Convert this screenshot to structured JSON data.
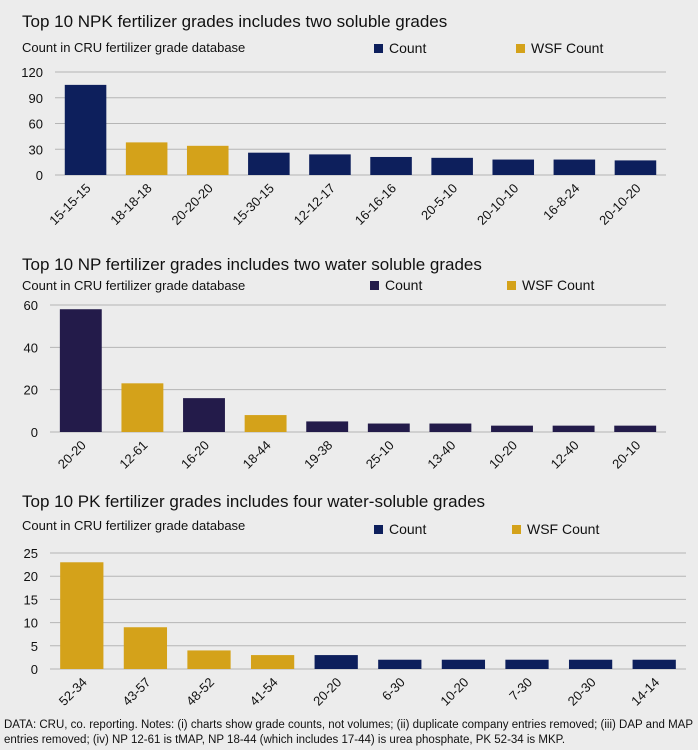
{
  "colors": {
    "count_npk": "#0d1f5c",
    "count_np": "#231b4a",
    "count_pk": "#0d1f5c",
    "wsf": "#d4a21a",
    "grid": "#b5b5b5"
  },
  "chart_data": [
    {
      "type": "bar",
      "title": "Top 10 NPK fertilizer grades includes two soluble grades",
      "ylabel": "Count in CRU fertilizer grade database",
      "legend": [
        "Count",
        "WSF Count"
      ],
      "legend_position": "top-right",
      "ylim": [
        0,
        120
      ],
      "yticks": [
        0,
        30,
        60,
        90,
        120
      ],
      "grid": true,
      "categories": [
        "15-15-15",
        "18-18-18",
        "20-20-20",
        "15-30-15",
        "12-12-17",
        "16-16-16",
        "20-5-10",
        "20-10-10",
        "16-8-24",
        "20-10-20"
      ],
      "values": [
        105,
        38,
        34,
        26,
        24,
        21,
        20,
        18,
        18,
        17
      ],
      "series_of_bar": [
        "Count",
        "WSF Count",
        "WSF Count",
        "Count",
        "Count",
        "Count",
        "Count",
        "Count",
        "Count",
        "Count"
      ]
    },
    {
      "type": "bar",
      "title": "Top 10 NP fertilizer grades includes two water soluble grades",
      "ylabel": "Count in CRU fertilizer grade database",
      "legend": [
        "Count",
        "WSF Count"
      ],
      "legend_position": "top-right",
      "ylim": [
        0,
        60
      ],
      "yticks": [
        0,
        20,
        40,
        60
      ],
      "grid": true,
      "categories": [
        "20-20",
        "12-61",
        "16-20",
        "18-44",
        "19-38",
        "25-10",
        "13-40",
        "10-20",
        "12-40",
        "20-10"
      ],
      "values": [
        58,
        23,
        16,
        8,
        5,
        4,
        4,
        3,
        3,
        3
      ],
      "series_of_bar": [
        "Count",
        "WSF Count",
        "Count",
        "WSF Count",
        "Count",
        "Count",
        "Count",
        "Count",
        "Count",
        "Count"
      ]
    },
    {
      "type": "bar",
      "title": "Top 10 PK fertilizer grades includes four water-soluble grades",
      "ylabel": "Count in CRU fertilizer grade database",
      "legend": [
        "Count",
        "WSF Count"
      ],
      "legend_position": "top-right",
      "ylim": [
        0,
        25
      ],
      "yticks": [
        0,
        5,
        10,
        15,
        20,
        25
      ],
      "grid": true,
      "categories": [
        "52-34",
        "43-57",
        "48-52",
        "41-54",
        "20-20",
        "6-30",
        "10-20",
        "7-30",
        "20-30",
        "14-14"
      ],
      "values": [
        23,
        9,
        4,
        3,
        3,
        2,
        2,
        2,
        2,
        2
      ],
      "series_of_bar": [
        "WSF Count",
        "WSF Count",
        "WSF Count",
        "WSF Count",
        "Count",
        "Count",
        "Count",
        "Count",
        "Count",
        "Count"
      ]
    }
  ],
  "footnote": "DATA: CRU, co. reporting. Notes: (i) charts show grade counts, not volumes; (ii) duplicate company entries removed; (iii) DAP and MAP entries removed; (iv) NP 12-61 is tMAP, NP 18-44 (which includes 17-44) is urea phosphate, PK 52-34 is MKP."
}
